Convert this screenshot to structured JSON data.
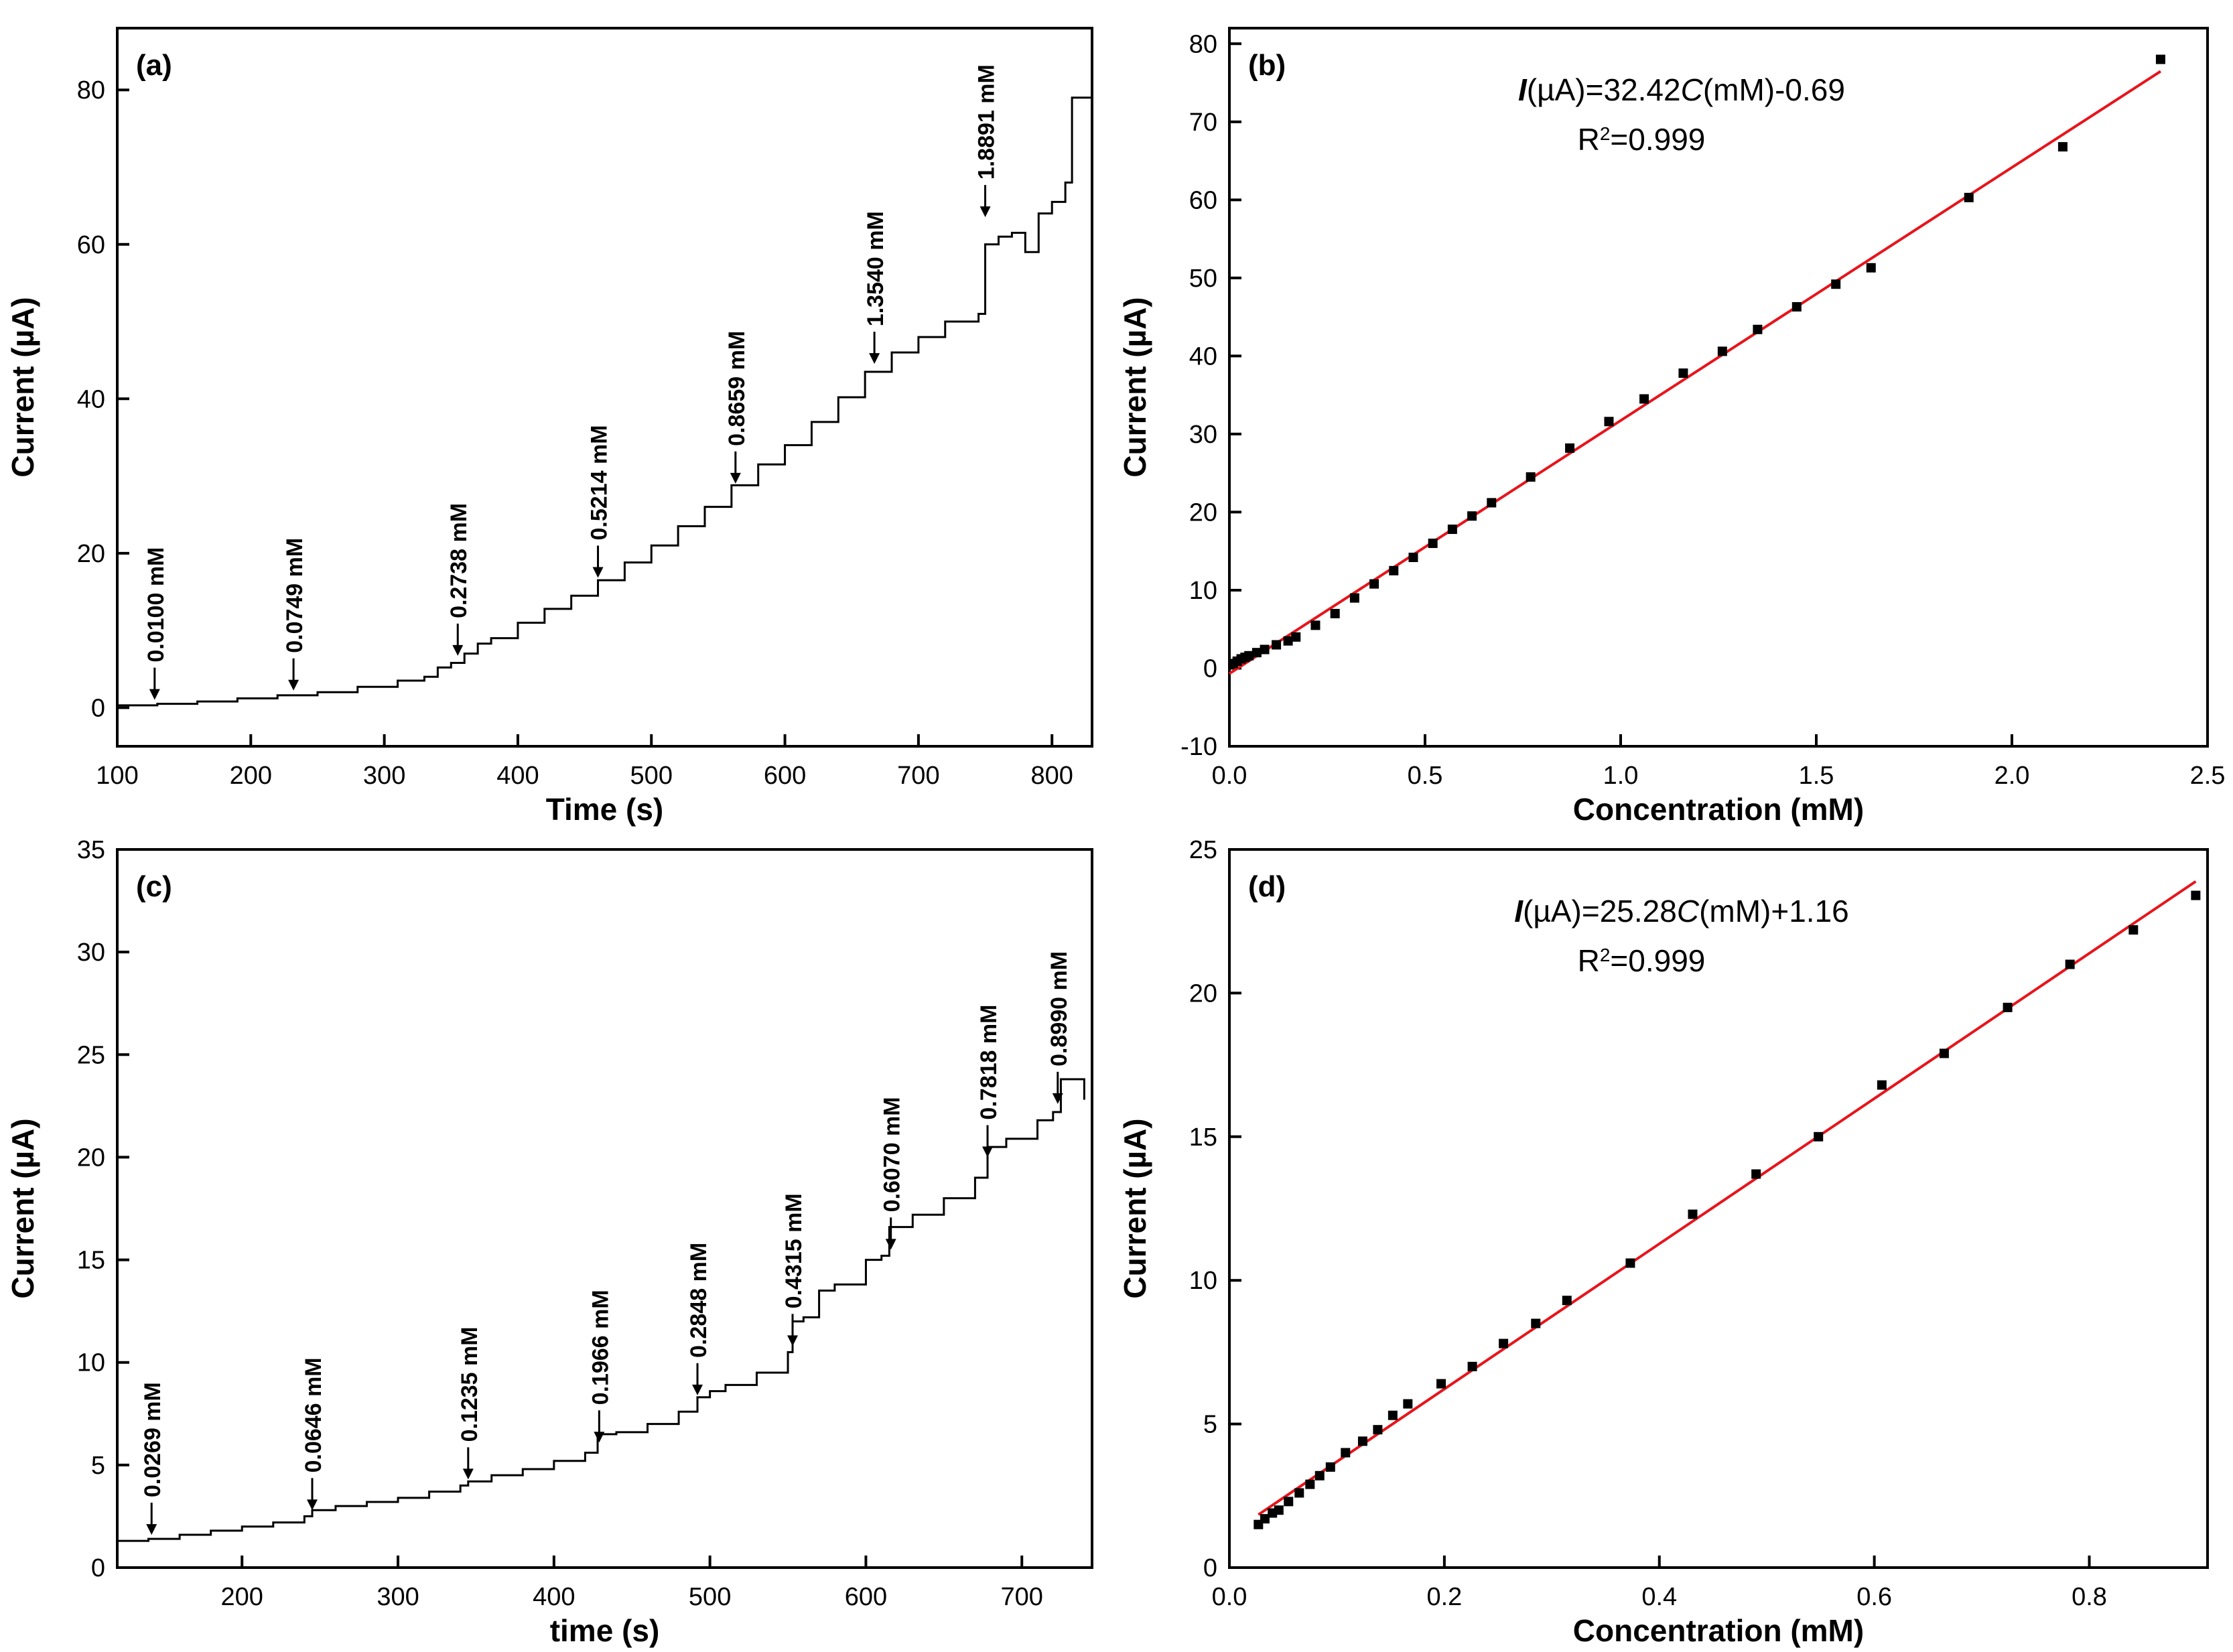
{
  "chart_data": [
    {
      "panel_label": "(a)",
      "type": "line",
      "xlabel": "Time (s)",
      "ylabel": "Current (µA)",
      "xlim": [
        100,
        830
      ],
      "ylim": [
        -5,
        88
      ],
      "xticks": [
        100,
        200,
        300,
        400,
        500,
        600,
        700,
        800
      ],
      "yticks": [
        0,
        20,
        40,
        60,
        80
      ],
      "x": [
        100,
        130,
        160,
        190,
        220,
        250,
        280,
        310,
        330,
        340,
        350,
        360,
        370,
        380,
        400,
        420,
        440,
        460,
        480,
        500,
        520,
        540,
        560,
        580,
        600,
        620,
        640,
        660,
        680,
        700,
        720,
        745,
        750,
        760,
        770,
        780,
        790,
        800,
        810,
        815,
        830
      ],
      "values": [
        0.3,
        0.5,
        0.8,
        1.2,
        1.6,
        2.0,
        2.7,
        3.5,
        4.0,
        5.2,
        5.8,
        7.0,
        8.3,
        9.0,
        11.0,
        12.8,
        14.5,
        16.5,
        18.8,
        21.0,
        23.5,
        26.0,
        28.8,
        31.5,
        34.0,
        37.0,
        40.2,
        43.5,
        46.0,
        48.0,
        50.0,
        51.0,
        60.0,
        61.0,
        61.5,
        59.0,
        64.0,
        65.5,
        68.0,
        79.0,
        76.5
      ],
      "annotations": [
        {
          "label": "0.0100 mM",
          "x": 128,
          "y": 0.5
        },
        {
          "label": "0.0749 mM",
          "x": 232,
          "y": 1.7
        },
        {
          "label": "0.2738 mM",
          "x": 355,
          "y": 6.2
        },
        {
          "label": "0.5214 mM",
          "x": 460,
          "y": 16.3
        },
        {
          "label": "0.8659 mM",
          "x": 563,
          "y": 28.5
        },
        {
          "label": "1.3540 mM",
          "x": 667,
          "y": 44.0
        },
        {
          "label": "1.8891 mM",
          "x": 750,
          "y": 63.0
        }
      ]
    },
    {
      "panel_label": "(b)",
      "type": "scatter",
      "xlabel": "Concentration (mM)",
      "ylabel": "Current (µA)",
      "xlim": [
        0.0,
        2.5
      ],
      "ylim": [
        -10,
        82
      ],
      "xticks": [
        0.0,
        0.5,
        1.0,
        1.5,
        2.0,
        2.5
      ],
      "xtick_labels": [
        "0.0",
        "0.5",
        "1.0",
        "1.5",
        "2.0",
        "2.5"
      ],
      "yticks": [
        -10,
        0,
        10,
        20,
        30,
        40,
        50,
        60,
        70,
        80
      ],
      "x": [
        0.01,
        0.02,
        0.03,
        0.04,
        0.05,
        0.07,
        0.09,
        0.12,
        0.15,
        0.17,
        0.22,
        0.27,
        0.32,
        0.37,
        0.42,
        0.47,
        0.52,
        0.57,
        0.62,
        0.67,
        0.77,
        0.87,
        0.97,
        1.06,
        1.16,
        1.26,
        1.35,
        1.45,
        1.55,
        1.64,
        1.89,
        2.13,
        2.38
      ],
      "values": [
        0.6,
        0.9,
        1.2,
        1.4,
        1.6,
        2.0,
        2.4,
        3.0,
        3.5,
        4.0,
        5.5,
        7.0,
        9.0,
        10.8,
        12.5,
        14.2,
        16.0,
        17.8,
        19.5,
        21.2,
        24.5,
        28.2,
        31.6,
        34.5,
        37.8,
        40.6,
        43.4,
        46.3,
        49.2,
        51.3,
        60.3,
        66.8,
        78.0
      ],
      "fit": {
        "slope": 32.42,
        "intercept": -0.69,
        "x_range": [
          0.0,
          2.38
        ]
      },
      "equation": {
        "I": "I",
        "rest": "(µA)=32.42",
        "C": "C",
        "tail": "(mM)-0.69"
      },
      "r2": {
        "base": "R",
        "sup": "2",
        "value": "=0.999"
      }
    },
    {
      "panel_label": "(c)",
      "type": "line",
      "xlabel": "time (s)",
      "ylabel": "Current (µA)",
      "xlim": [
        120,
        745
      ],
      "ylim": [
        0,
        35
      ],
      "xticks": [
        200,
        300,
        400,
        500,
        600,
        700
      ],
      "yticks": [
        0,
        5,
        10,
        15,
        20,
        25,
        30,
        35
      ],
      "x": [
        120,
        140,
        160,
        180,
        200,
        220,
        240,
        245,
        260,
        280,
        300,
        320,
        340,
        345,
        360,
        380,
        400,
        420,
        428,
        440,
        460,
        480,
        492,
        500,
        510,
        530,
        550,
        553,
        560,
        570,
        580,
        600,
        610,
        615,
        630,
        650,
        670,
        678,
        690,
        710,
        720,
        725,
        740
      ],
      "values": [
        1.3,
        1.4,
        1.6,
        1.8,
        2.0,
        2.2,
        2.5,
        2.8,
        3.0,
        3.2,
        3.4,
        3.7,
        4.0,
        4.2,
        4.5,
        4.8,
        5.2,
        5.6,
        6.5,
        6.6,
        7.0,
        7.6,
        8.3,
        8.6,
        8.9,
        9.5,
        10.5,
        12.0,
        12.2,
        13.5,
        13.8,
        15.0,
        15.2,
        16.6,
        17.2,
        18.0,
        19.0,
        20.5,
        20.9,
        21.8,
        22.2,
        23.8,
        22.8
      ],
      "annotations": [
        {
          "label": "0.0269 mM",
          "x": 142,
          "y": 1.4
        },
        {
          "label": "0.0646 mM",
          "x": 245,
          "y": 2.6
        },
        {
          "label": "0.1235 mM",
          "x": 345,
          "y": 4.1
        },
        {
          "label": "0.1966 mM",
          "x": 429,
          "y": 5.9
        },
        {
          "label": "0.2848 mM",
          "x": 492,
          "y": 8.2
        },
        {
          "label": "0.4315 mM",
          "x": 553,
          "y": 10.6
        },
        {
          "label": "0.6070 mM",
          "x": 616,
          "y": 15.3
        },
        {
          "label": "0.7818 mM",
          "x": 678,
          "y": 19.8
        },
        {
          "label": "0.8990 mM",
          "x": 723,
          "y": 22.4
        }
      ]
    },
    {
      "panel_label": "(d)",
      "type": "scatter",
      "xlabel": "Concentration (mM)",
      "ylabel": "Current (µA)",
      "xlim": [
        0.0,
        0.91
      ],
      "ylim": [
        0,
        25
      ],
      "xticks": [
        0.0,
        0.2,
        0.4,
        0.6,
        0.8
      ],
      "xtick_labels": [
        "0.0",
        "0.2",
        "0.4",
        "0.6",
        "0.8"
      ],
      "yticks": [
        0,
        5,
        10,
        15,
        20,
        25
      ],
      "x": [
        0.027,
        0.033,
        0.04,
        0.046,
        0.055,
        0.065,
        0.075,
        0.084,
        0.094,
        0.108,
        0.124,
        0.138,
        0.152,
        0.166,
        0.197,
        0.226,
        0.255,
        0.285,
        0.314,
        0.373,
        0.431,
        0.49,
        0.548,
        0.607,
        0.665,
        0.724,
        0.782,
        0.841,
        0.899
      ],
      "values": [
        1.5,
        1.7,
        1.9,
        2.0,
        2.3,
        2.6,
        2.9,
        3.2,
        3.5,
        4.0,
        4.4,
        4.8,
        5.3,
        5.7,
        6.4,
        7.0,
        7.8,
        8.5,
        9.3,
        10.6,
        12.3,
        13.7,
        15.0,
        16.8,
        17.9,
        19.5,
        21.0,
        22.2,
        23.4
      ],
      "fit": {
        "slope": 25.28,
        "intercept": 1.16,
        "x_range": [
          0.027,
          0.899
        ]
      },
      "equation": {
        "I": "I",
        "rest": "(µA)=25.28",
        "C": "C",
        "tail": "(mM)+1.16"
      },
      "r2": {
        "base": "R",
        "sup": "2",
        "value": "=0.999"
      }
    }
  ],
  "colors": {
    "data": "#000000",
    "fit_line": "#e8141b",
    "axis": "#000000"
  }
}
